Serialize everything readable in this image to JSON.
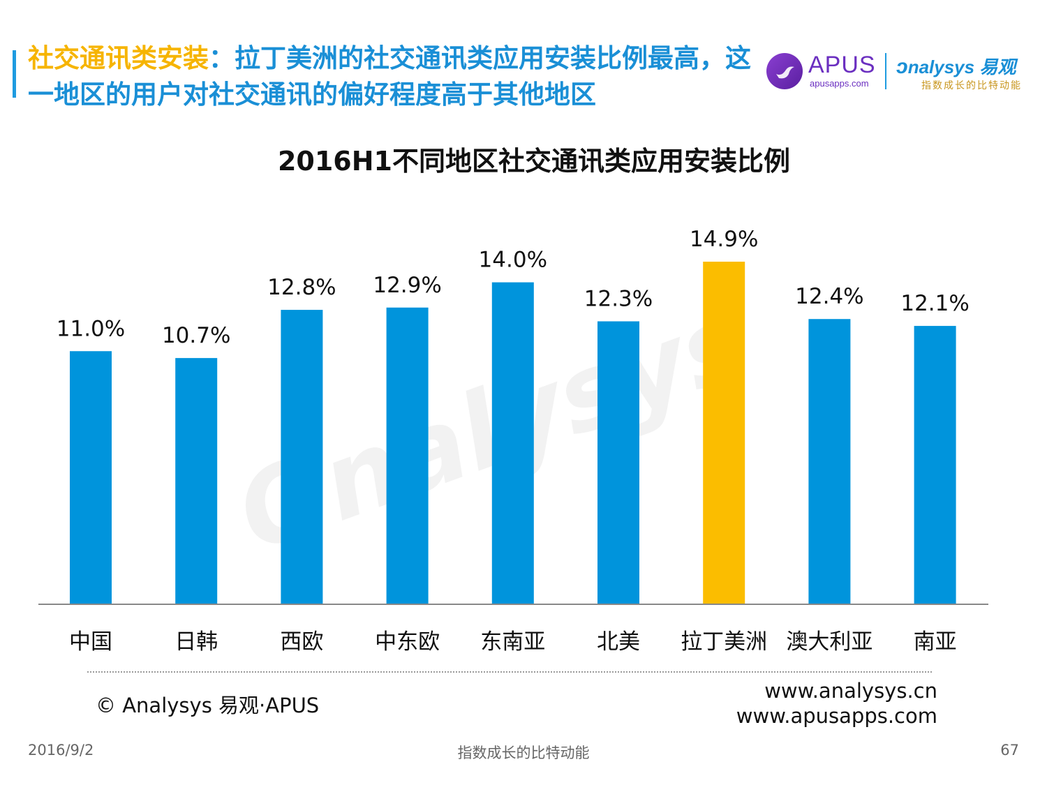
{
  "header": {
    "title_highlight": "社交通讯类安装",
    "title_rest": "：拉丁美洲的社交通讯类应用安装比例最高，这一地区的用户对社交通讯的偏好程度高于其他地区"
  },
  "logos": {
    "apus_name": "APUS",
    "apus_domain": "apusapps.com",
    "analysys_name": "nalysys 易观",
    "analysys_slogan": "指数成长的比特动能"
  },
  "chart_data": {
    "type": "bar",
    "title": "2016H1不同地区社交通讯类应用安装比例",
    "categories": [
      "中国",
      "日韩",
      "西欧",
      "中东欧",
      "东南亚",
      "北美",
      "拉丁美洲",
      "澳大利亚",
      "南亚"
    ],
    "values": [
      11.0,
      10.7,
      12.8,
      12.9,
      14.0,
      12.3,
      14.9,
      12.4,
      12.1
    ],
    "labels": [
      "11.0%",
      "10.7%",
      "12.8%",
      "12.9%",
      "14.0%",
      "12.3%",
      "14.9%",
      "12.4%",
      "12.1%"
    ],
    "unit": "%",
    "highlight_index": 6,
    "colors": {
      "default": "#0094dc",
      "highlight": "#fbbd00",
      "axis": "#888888"
    },
    "ylim": [
      0,
      14.9
    ],
    "grid": false
  },
  "footer": {
    "copyright": "© Analysys 易观·APUS",
    "url1": "www.analysys.cn",
    "url2": "www.apusapps.com",
    "date": "2016/9/2",
    "slogan": "指数成长的比特动能",
    "page": "67"
  }
}
